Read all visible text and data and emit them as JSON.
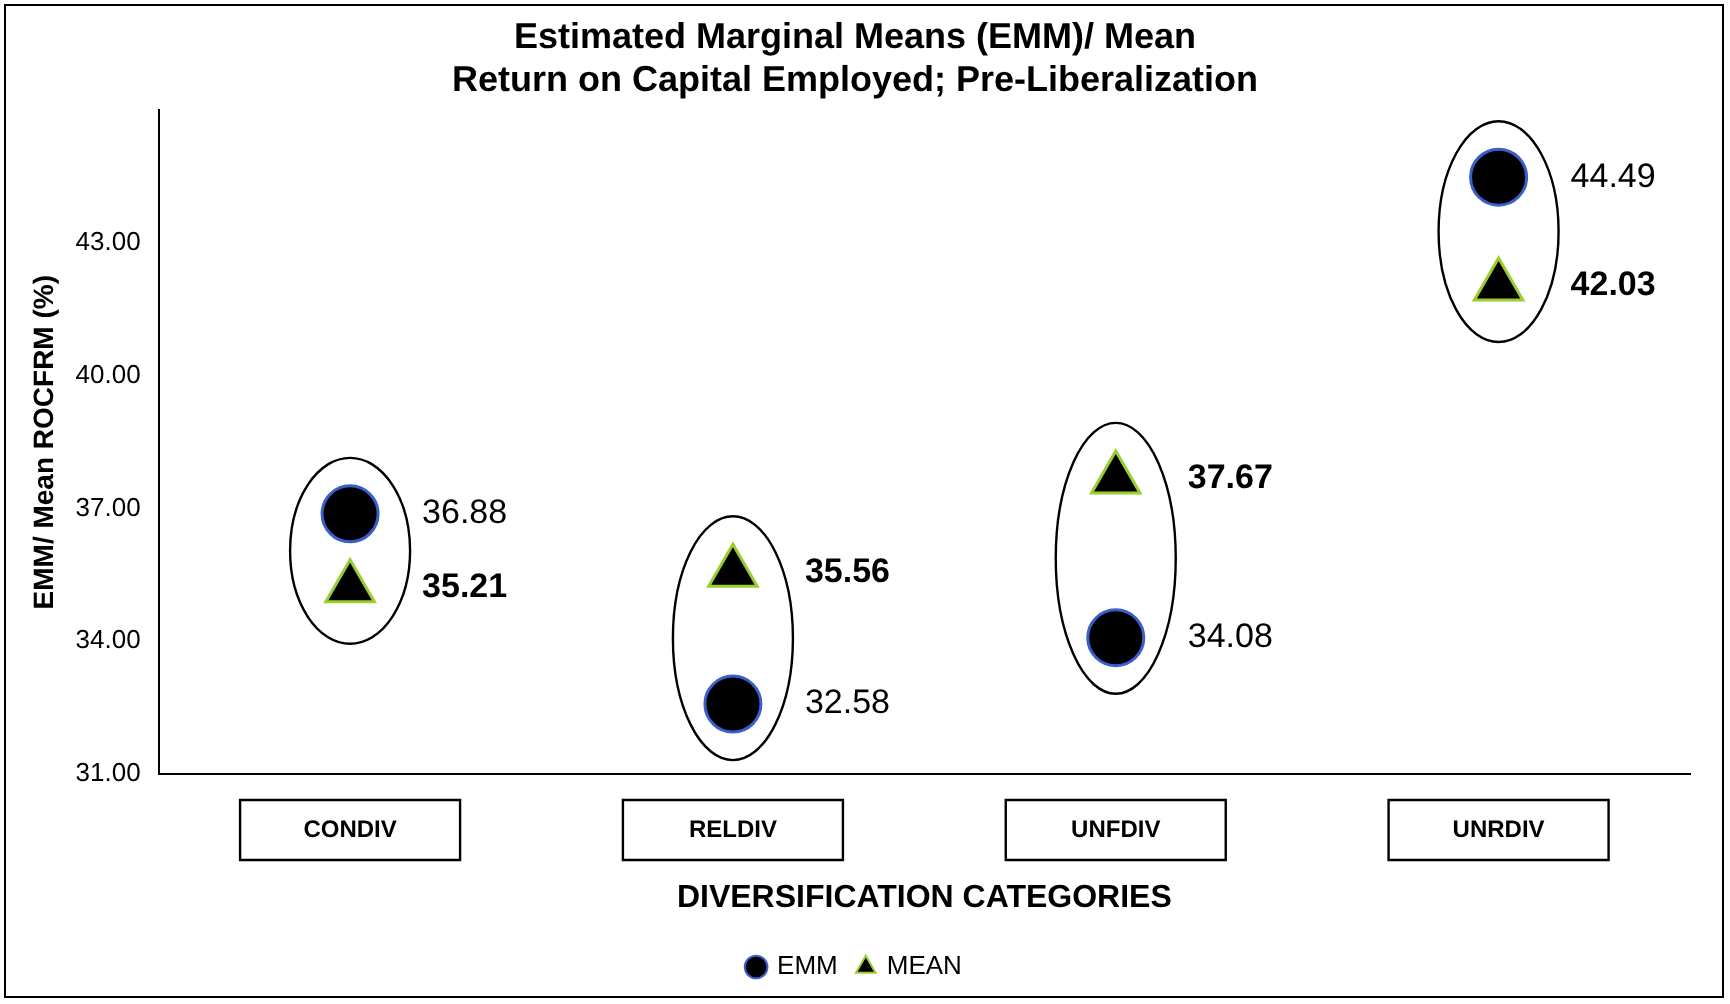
{
  "chart_data": {
    "type": "scatter",
    "title": "Estimated Marginal Means (EMM)/ Mean Return on Capital Employed; Pre-Liberalization",
    "xlabel": "DIVERSIFICATION CATEGORIES",
    "ylabel": "EMM/ Mean ROCFRM (%)",
    "categories": [
      "CONDIV",
      "RELDIV",
      "UNFDIV",
      "UNRDIV"
    ],
    "series": [
      {
        "name": "EMM",
        "color": "#000000",
        "marker": "circle",
        "values": [
          36.88,
          32.58,
          34.08,
          44.49
        ]
      },
      {
        "name": "MEAN",
        "color": "#000000",
        "marker": "triangle",
        "values": [
          35.21,
          35.56,
          37.67,
          42.03
        ]
      }
    ],
    "ylim": [
      31,
      46
    ],
    "yticks": [
      {
        "value": 31,
        "label": "31.00"
      },
      {
        "value": 34,
        "label": "34.00"
      },
      {
        "value": 37,
        "label": "37.00"
      },
      {
        "value": 40,
        "label": "40.00"
      },
      {
        "value": 43,
        "label": "43.00"
      }
    ],
    "data_labels": true,
    "grid": false,
    "legend": "bottom"
  }
}
